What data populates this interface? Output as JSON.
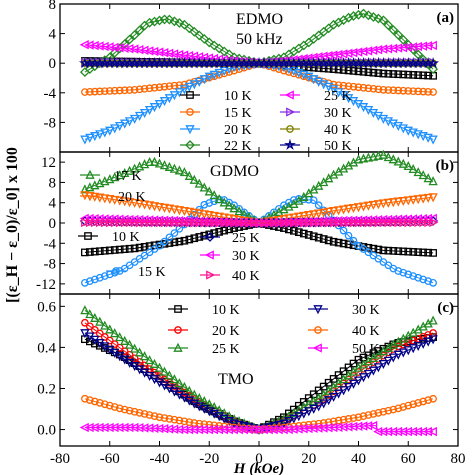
{
  "figure": {
    "ylabel": "[(ε_H − ε_0)/ε_0] x 100",
    "xlabel": "H (kOe)",
    "x_ticks": [
      -80,
      -60,
      -40,
      -20,
      0,
      20,
      40,
      60,
      80
    ]
  },
  "chart_data": [
    {
      "type": "line",
      "panel_label": "(a)",
      "title": "EDMO",
      "subtitle": "50 kHz",
      "xlim": [
        -80,
        80
      ],
      "ylim": [
        -12,
        8
      ],
      "y_ticks": [
        -8,
        -4,
        0,
        4,
        8
      ],
      "series": [
        {
          "name": "10 K",
          "color": "#000000",
          "marker": "square",
          "x": [
            -70,
            -50,
            -30,
            -10,
            0,
            10,
            30,
            50,
            70
          ],
          "y": [
            0.3,
            0.2,
            0.1,
            0.0,
            0.0,
            -0.3,
            -0.8,
            -1.4,
            -1.7
          ]
        },
        {
          "name": "15 K",
          "color": "#ff6600",
          "marker": "circle",
          "x": [
            -70,
            -50,
            -30,
            -10,
            0,
            10,
            30,
            50,
            70
          ],
          "y": [
            -3.9,
            -3.6,
            -2.9,
            -1.0,
            0.0,
            -1.0,
            -2.9,
            -3.6,
            -3.9
          ]
        },
        {
          "name": "20 K",
          "color": "#1e90ff",
          "marker": "triangle-down",
          "x": [
            -70,
            -60,
            -50,
            -40,
            -30,
            -20,
            -10,
            0,
            10,
            20,
            30,
            40,
            50,
            60,
            70
          ],
          "y": [
            -10.3,
            -9.1,
            -7.5,
            -5.5,
            -3.5,
            -1.8,
            -0.5,
            0.0,
            -0.5,
            -1.8,
            -3.5,
            -5.5,
            -7.5,
            -9.1,
            -10.3
          ]
        },
        {
          "name": "22 K",
          "color": "#228b22",
          "marker": "diamond",
          "x": [
            -70,
            -60,
            -50,
            -45,
            -37,
            -30,
            -20,
            -10,
            0,
            10,
            20,
            30,
            37,
            42,
            50,
            60,
            70
          ],
          "y": [
            -1.2,
            0.8,
            3.8,
            5.4,
            6.0,
            5.2,
            2.8,
            0.8,
            0.0,
            0.8,
            2.8,
            5.2,
            6.3,
            6.7,
            5.8,
            2.5,
            -0.8
          ]
        },
        {
          "name": "25 K",
          "color": "#ff00ff",
          "marker": "triangle-left",
          "x": [
            -70,
            -50,
            -30,
            -10,
            0,
            10,
            30,
            50,
            70
          ],
          "y": [
            2.5,
            1.9,
            1.1,
            0.3,
            0.0,
            0.3,
            1.1,
            1.9,
            2.4
          ]
        },
        {
          "name": "30 K",
          "color": "#8a2be2",
          "marker": "triangle-right",
          "x": [
            -70,
            -35,
            0,
            35,
            70
          ],
          "y": [
            0.1,
            0.05,
            0.0,
            0.05,
            0.1
          ]
        },
        {
          "name": "40 K",
          "color": "#808000",
          "marker": "circle",
          "x": [
            -70,
            -35,
            0,
            35,
            70
          ],
          "y": [
            0.0,
            0.0,
            0.0,
            0.0,
            0.0
          ]
        },
        {
          "name": "50 K",
          "color": "#00008b",
          "marker": "star",
          "x": [
            -70,
            -35,
            0,
            35,
            70
          ],
          "y": [
            0.0,
            0.0,
            0.0,
            0.0,
            0.0
          ]
        }
      ]
    },
    {
      "type": "line",
      "panel_label": "(b)",
      "title": "GDMO",
      "xlim": [
        -80,
        80
      ],
      "ylim": [
        -14,
        14
      ],
      "y_ticks": [
        -12,
        -8,
        -4,
        0,
        4,
        8,
        12
      ],
      "series": [
        {
          "name": "10 K",
          "color": "#000000",
          "marker": "square",
          "x": [
            -70,
            -50,
            -30,
            -10,
            0,
            10,
            30,
            50,
            70
          ],
          "y": [
            -5.8,
            -5.0,
            -3.5,
            -1.0,
            0.0,
            -1.0,
            -3.7,
            -5.4,
            -5.9
          ]
        },
        {
          "name": "15 K",
          "color": "#1e90ff",
          "marker": "circle",
          "x": [
            -70,
            -55,
            -40,
            -30,
            -22,
            -15,
            -10,
            0,
            10,
            15,
            22,
            30,
            40,
            55,
            70
          ],
          "y": [
            -11.8,
            -9.3,
            -4.5,
            -0.3,
            3.6,
            4.8,
            3.5,
            0.0,
            3.5,
            4.8,
            4.5,
            0.5,
            -4.5,
            -9.3,
            -11.8
          ]
        },
        {
          "name": "17 K",
          "color": "#228b22",
          "marker": "triangle-up",
          "x": [
            -70,
            -55,
            -43,
            -30,
            -15,
            0,
            15,
            30,
            40,
            50,
            60,
            70
          ],
          "y": [
            6.6,
            9.6,
            12.2,
            10.0,
            4.3,
            0.0,
            4.0,
            9.5,
            12.5,
            13.4,
            11.2,
            8.2
          ]
        },
        {
          "name": "20 K",
          "color": "#ff6600",
          "marker": "triangle-down",
          "x": [
            -70,
            -50,
            -30,
            -10,
            0,
            10,
            30,
            50,
            70
          ],
          "y": [
            5.5,
            4.0,
            2.4,
            0.8,
            0.0,
            0.8,
            2.4,
            3.9,
            5.1
          ]
        },
        {
          "name": "25 K",
          "color": "#00008b",
          "marker": "diamond",
          "x": [
            -70,
            -35,
            0,
            35,
            70
          ],
          "y": [
            0.4,
            0.2,
            0.0,
            0.2,
            0.4
          ]
        },
        {
          "name": "30 K",
          "color": "#ff00ff",
          "marker": "triangle-left",
          "x": [
            -70,
            -35,
            0,
            35,
            70
          ],
          "y": [
            0.9,
            0.5,
            0.0,
            0.5,
            0.9
          ]
        },
        {
          "name": "40 K",
          "color": "#ff1493",
          "marker": "triangle-right",
          "x": [
            -70,
            -35,
            0,
            35,
            70
          ],
          "y": [
            0.1,
            0.05,
            0.0,
            0.05,
            0.1
          ]
        }
      ]
    },
    {
      "type": "line",
      "panel_label": "(c)",
      "title": "TMO",
      "xlim": [
        -80,
        80
      ],
      "ylim": [
        -0.08,
        0.66
      ],
      "y_ticks": [
        0.0,
        0.2,
        0.4,
        0.6
      ],
      "series": [
        {
          "name": "10 K",
          "color": "#000000",
          "marker": "square",
          "x": [
            -70,
            -55,
            -40,
            -25,
            -10,
            0,
            10,
            25,
            40,
            55,
            70
          ],
          "y": [
            0.44,
            0.36,
            0.25,
            0.13,
            0.04,
            0.0,
            0.06,
            0.2,
            0.34,
            0.42,
            0.45
          ]
        },
        {
          "name": "20 K",
          "color": "#ff0000",
          "marker": "circle",
          "x": [
            -70,
            -55,
            -40,
            -25,
            -10,
            0,
            10,
            25,
            40,
            55,
            70
          ],
          "y": [
            0.52,
            0.39,
            0.26,
            0.14,
            0.04,
            0.0,
            0.04,
            0.14,
            0.28,
            0.4,
            0.47
          ]
        },
        {
          "name": "25 K",
          "color": "#228b22",
          "marker": "triangle-up",
          "x": [
            -70,
            -55,
            -40,
            -25,
            -10,
            0,
            10,
            25,
            40,
            55,
            70
          ],
          "y": [
            0.58,
            0.44,
            0.3,
            0.16,
            0.05,
            0.0,
            0.05,
            0.16,
            0.3,
            0.42,
            0.53
          ]
        },
        {
          "name": "30 K",
          "color": "#00008b",
          "marker": "triangle-down",
          "x": [
            -70,
            -55,
            -40,
            -25,
            -10,
            0,
            10,
            25,
            40,
            55,
            70
          ],
          "y": [
            0.47,
            0.35,
            0.23,
            0.12,
            0.03,
            0.0,
            0.03,
            0.12,
            0.24,
            0.36,
            0.44
          ]
        },
        {
          "name": "40 K",
          "color": "#ff6600",
          "marker": "circle",
          "x": [
            -70,
            -55,
            -40,
            -25,
            -10,
            0,
            10,
            25,
            40,
            55,
            70
          ],
          "y": [
            0.15,
            0.1,
            0.06,
            0.03,
            0.01,
            0.0,
            0.01,
            0.03,
            0.06,
            0.1,
            0.15
          ]
        },
        {
          "name": "50 K",
          "color": "#ff00ff",
          "marker": "triangle-left",
          "x": [
            -70,
            -50,
            -30,
            -10,
            0,
            10,
            30,
            47,
            48,
            50,
            70
          ],
          "y": [
            0.01,
            0.01,
            0.0,
            0.0,
            0.0,
            0.0,
            0.01,
            0.02,
            -0.01,
            -0.01,
            -0.01
          ]
        }
      ]
    }
  ]
}
